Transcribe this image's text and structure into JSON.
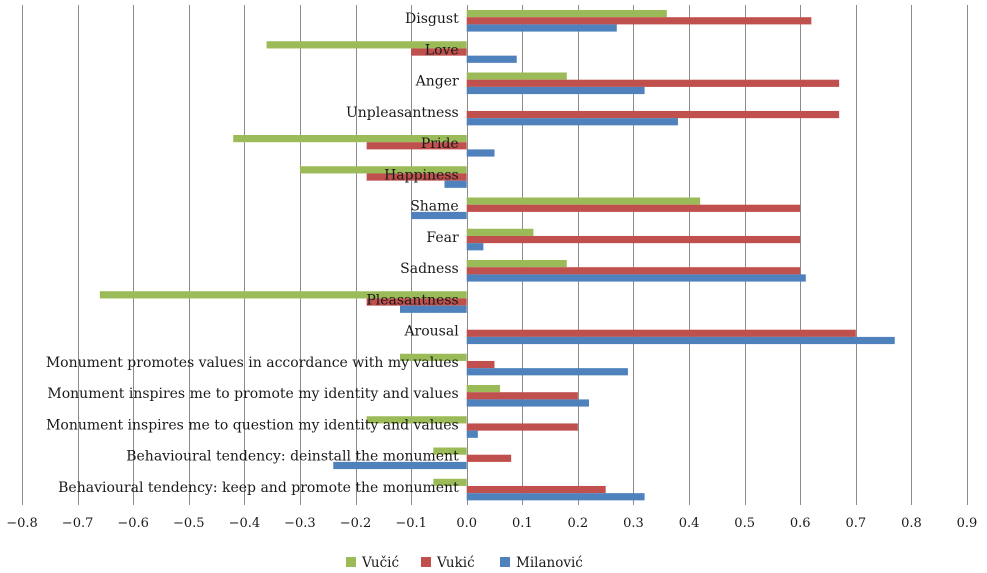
{
  "chart_data": {
    "type": "bar",
    "orientation": "horizontal",
    "title": "",
    "xlabel": "",
    "ylabel": "",
    "xlim": [
      -0.8,
      0.9
    ],
    "tick_labels": [
      "−0.8",
      "−0.7",
      "−0.6",
      "−0.5",
      "−0.4",
      "−0.3",
      "−0.2",
      "−0.1",
      "0.0",
      "0.1",
      "0.2",
      "0.3",
      "0.4",
      "0.5",
      "0.6",
      "0.7",
      "0.8",
      "0.9"
    ],
    "tick_values": [
      -0.8,
      -0.7,
      -0.6,
      -0.5,
      -0.4,
      -0.3,
      -0.2,
      -0.1,
      0.0,
      0.1,
      0.2,
      0.3,
      0.4,
      0.5,
      0.6,
      0.7,
      0.8,
      0.9
    ],
    "grid": true,
    "legend_position": "bottom",
    "categories": [
      "Disgust",
      "Love",
      "Anger",
      "Unpleasantness",
      "Pride",
      "Happiness",
      "Shame",
      "Fear",
      "Sadness",
      "Pleasantness",
      "Arousal",
      "Monument promotes values in accordance with my values",
      "Monument inspires me to promote my identity and values",
      "Monument inspires me to question my identity and values",
      "Behavioural tendency: deinstall the monument",
      "Behavioural tendency: keep and promote the monument"
    ],
    "series": [
      {
        "name": "Vučić",
        "color": "#9bbb59",
        "values": [
          0.36,
          -0.36,
          0.18,
          0.0,
          -0.42,
          -0.3,
          0.42,
          0.12,
          0.18,
          -0.66,
          0.0,
          -0.12,
          0.06,
          -0.18,
          -0.06,
          -0.06
        ]
      },
      {
        "name": "Vukić",
        "color": "#c0504d",
        "values": [
          0.62,
          -0.1,
          0.67,
          0.67,
          -0.18,
          -0.18,
          0.6,
          0.6,
          0.6,
          -0.18,
          0.7,
          0.05,
          0.2,
          0.2,
          0.08,
          0.25
        ]
      },
      {
        "name": "Milanović",
        "color": "#4f81bd",
        "values": [
          0.27,
          0.09,
          0.32,
          0.38,
          0.05,
          -0.04,
          -0.1,
          0.03,
          0.61,
          -0.12,
          0.77,
          0.29,
          0.22,
          0.02,
          -0.24,
          0.32
        ]
      }
    ]
  }
}
